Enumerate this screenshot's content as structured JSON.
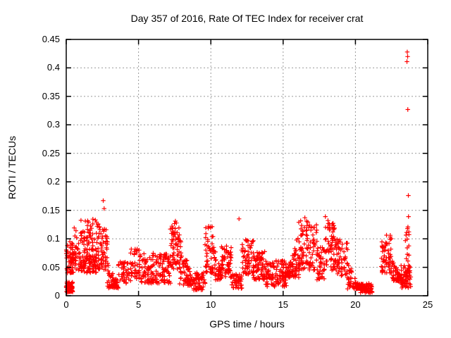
{
  "chart_data": {
    "type": "scatter",
    "title": "Day 357 of 2016, Rate Of TEC Index for receiver crat",
    "xlabel": "GPS time / hours",
    "ylabel": "ROTI / TECUs",
    "xlim": [
      0,
      25
    ],
    "ylim": [
      0,
      0.45
    ],
    "x_ticks": [
      "0",
      "5",
      "10",
      "15",
      "20",
      "25"
    ],
    "y_ticks": [
      "0",
      "0.05",
      "0.1",
      "0.15",
      "0.2",
      "0.25",
      "0.3",
      "0.35",
      "0.4",
      "0.45"
    ],
    "grid": true,
    "legend_position": "none",
    "marker": {
      "shape": "plus",
      "color": "#ff0000",
      "size": 7
    },
    "grid_color": "#999999",
    "border_color": "#000000",
    "seed": 357,
    "cluster_envelopes": [
      [
        0.0,
        0.45,
        70,
        0.006,
        0.024,
        1,
        0
      ],
      [
        0.02,
        0.5,
        55,
        0.04,
        0.095,
        1.1,
        0
      ],
      [
        0.5,
        1.0,
        30,
        0.045,
        0.115,
        1.3,
        0
      ],
      [
        1.0,
        2.1,
        130,
        0.04,
        0.135,
        1.4,
        0
      ],
      [
        2.1,
        2.85,
        70,
        0.045,
        0.128,
        1.3,
        0
      ],
      [
        2.85,
        3.6,
        45,
        0.013,
        0.06,
        1.1,
        1
      ],
      [
        3.1,
        3.55,
        20,
        0.013,
        0.03,
        1,
        0
      ],
      [
        3.6,
        4.45,
        40,
        0.022,
        0.062,
        1.2,
        0
      ],
      [
        4.45,
        5.15,
        45,
        0.03,
        0.088,
        1.3,
        0
      ],
      [
        5.15,
        7.2,
        150,
        0.022,
        0.075,
        1.4,
        0
      ],
      [
        7.2,
        7.8,
        60,
        0.04,
        0.128,
        1.1,
        0
      ],
      [
        7.8,
        8.75,
        75,
        0.018,
        0.105,
        1.4,
        1
      ],
      [
        8.75,
        9.6,
        60,
        0.01,
        0.042,
        1.2,
        0
      ],
      [
        9.6,
        10.2,
        50,
        0.04,
        0.122,
        1.2,
        0
      ],
      [
        10.2,
        10.75,
        40,
        0.028,
        0.092,
        1.3,
        1
      ],
      [
        10.75,
        11.45,
        55,
        0.032,
        0.088,
        1.3,
        0
      ],
      [
        11.45,
        12.15,
        45,
        0.013,
        0.038,
        1.1,
        0
      ],
      [
        12.15,
        12.95,
        60,
        0.038,
        0.102,
        1.3,
        0
      ],
      [
        12.95,
        13.75,
        65,
        0.028,
        0.078,
        1.3,
        0
      ],
      [
        13.75,
        15.25,
        115,
        0.016,
        0.062,
        1.3,
        0
      ],
      [
        15.25,
        16.1,
        70,
        0.032,
        0.112,
        1.2,
        -1
      ],
      [
        16.1,
        17.35,
        95,
        0.045,
        0.132,
        1.2,
        0
      ],
      [
        17.35,
        17.9,
        40,
        0.028,
        0.085,
        1.2,
        0
      ],
      [
        17.9,
        18.65,
        60,
        0.045,
        0.128,
        1.2,
        0
      ],
      [
        18.65,
        19.45,
        55,
        0.035,
        0.1,
        1.3,
        0
      ],
      [
        19.45,
        20.25,
        50,
        0.012,
        0.06,
        1.3,
        1
      ],
      [
        20.25,
        21.15,
        70,
        0.005,
        0.022,
        1,
        0
      ],
      [
        21.8,
        22.5,
        60,
        0.04,
        0.108,
        1.2,
        0
      ],
      [
        22.5,
        23.2,
        55,
        0.025,
        0.068,
        1.3,
        1
      ],
      [
        23.15,
        23.8,
        65,
        0.013,
        0.055,
        1.2,
        0
      ],
      [
        23.45,
        23.7,
        12,
        0.06,
        0.122,
        1,
        0
      ]
    ],
    "outliers": [
      [
        0.55,
        0.119
      ],
      [
        1.32,
        0.131
      ],
      [
        2.56,
        0.167
      ],
      [
        2.62,
        0.153
      ],
      [
        7.55,
        0.131
      ],
      [
        9.85,
        0.122
      ],
      [
        11.95,
        0.135
      ],
      [
        16.5,
        0.137
      ],
      [
        16.62,
        0.131
      ],
      [
        17.92,
        0.139
      ],
      [
        18.1,
        0.132
      ],
      [
        23.54,
        0.111
      ],
      [
        23.56,
        0.411
      ],
      [
        23.58,
        0.428
      ],
      [
        23.6,
        0.118
      ],
      [
        23.61,
        0.42
      ],
      [
        23.62,
        0.327
      ],
      [
        23.66,
        0.176
      ],
      [
        23.67,
        0.139
      ]
    ]
  }
}
